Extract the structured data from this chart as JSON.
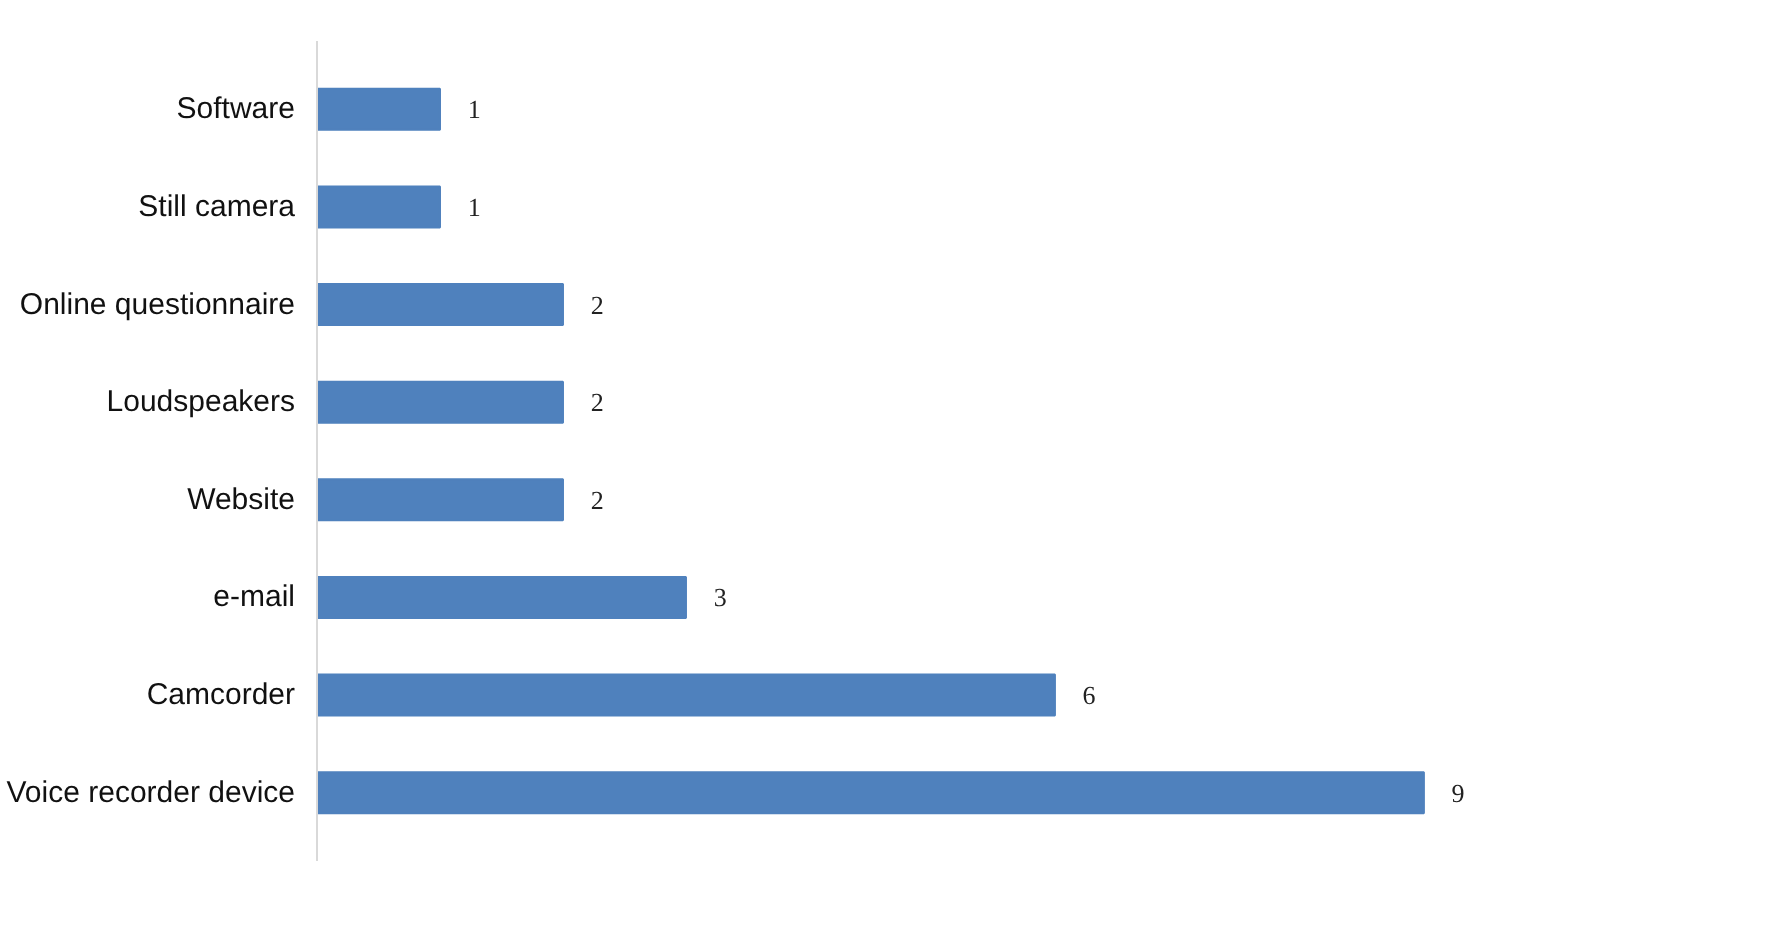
{
  "chart_data": {
    "type": "bar",
    "orientation": "horizontal",
    "categories": [
      "Software",
      "Still camera",
      "Online questionnaire",
      "Loudspeakers",
      "Website",
      "e-mail",
      "Camcorder",
      "Voice recorder device"
    ],
    "values": [
      1,
      1,
      2,
      2,
      2,
      3,
      6,
      9
    ],
    "color": "#4f81bd",
    "data_labels": true,
    "grid": false
  }
}
